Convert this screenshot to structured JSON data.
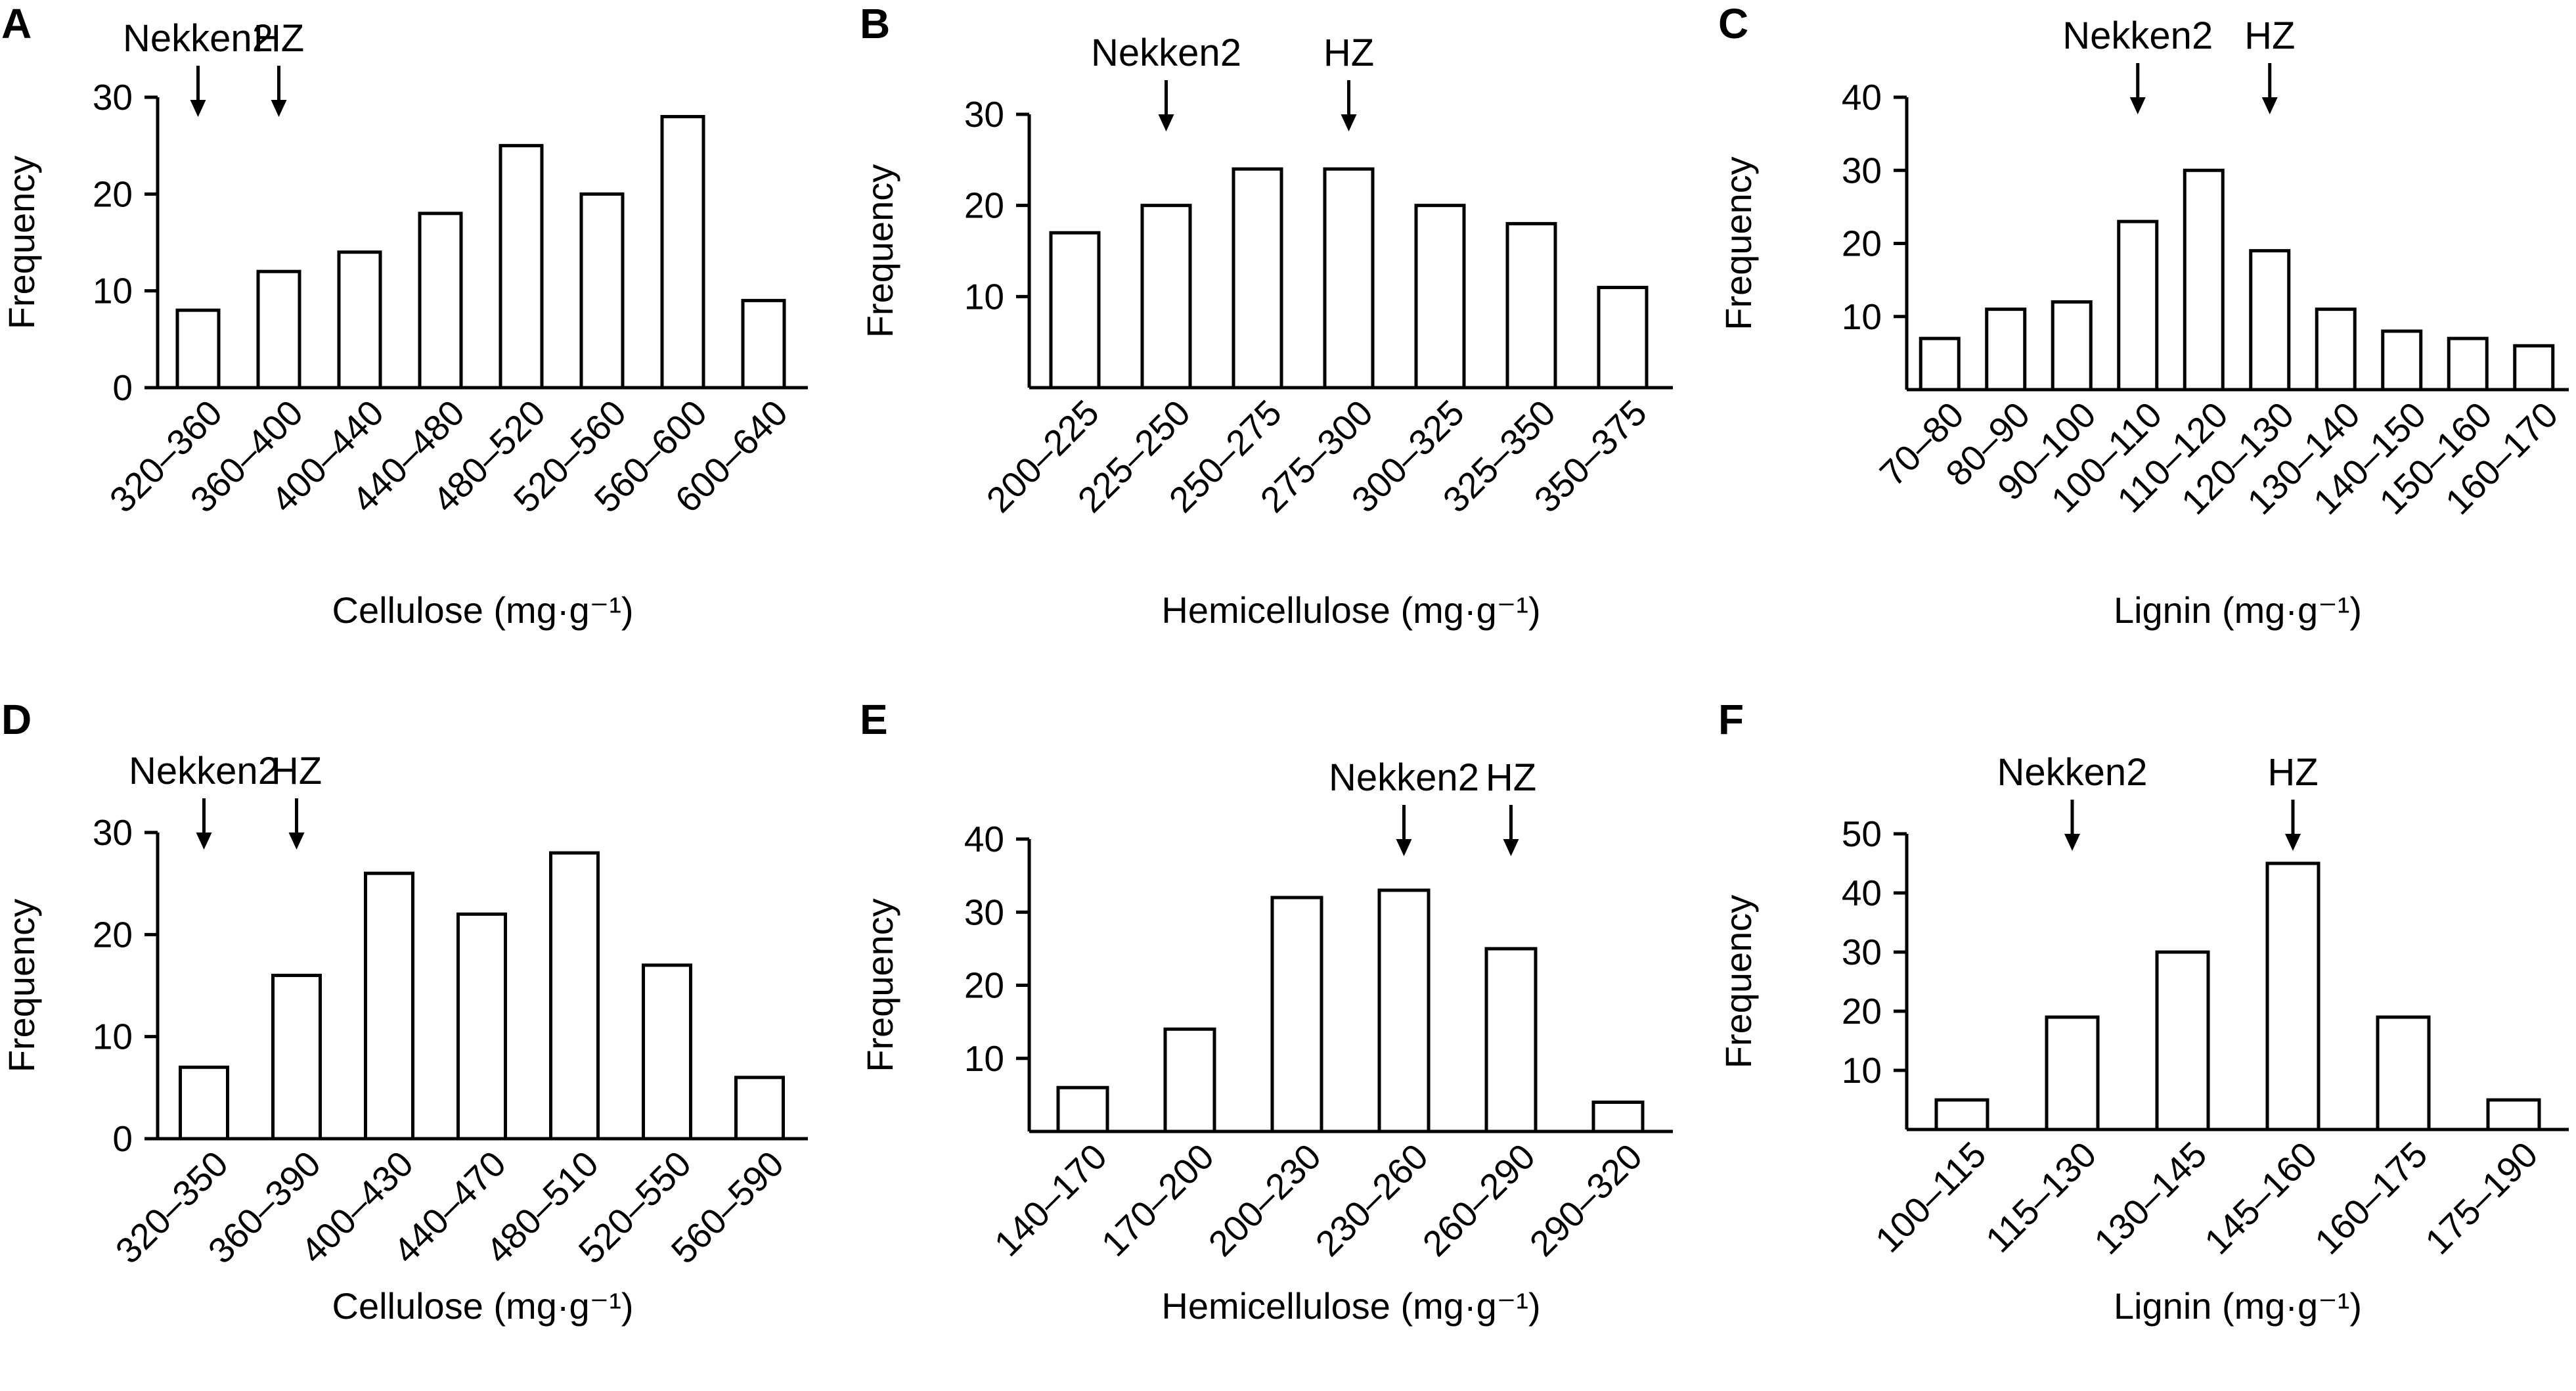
{
  "figure": {
    "markers": {
      "nekken2": "Nekken2",
      "hz": "HZ"
    },
    "frequency_label": "Frequency"
  },
  "chart_data": [
    {
      "panel": "A",
      "type": "bar",
      "xlabel": "Cellulose (mg·g⁻¹)",
      "ylabel": "Frequency",
      "ylim": [
        0,
        30
      ],
      "yticks": [
        "0",
        "10",
        "20",
        "30"
      ],
      "categories": [
        "320–360",
        "360–400",
        "400–440",
        "440–480",
        "480–520",
        "520–560",
        "560–600",
        "600–640"
      ],
      "values": [
        8,
        12,
        14,
        18,
        25,
        20,
        28,
        9
      ],
      "markers": [
        {
          "label": "Nekken2",
          "at_category": "320–360"
        },
        {
          "label": "HZ",
          "at_category": "360–400"
        }
      ]
    },
    {
      "panel": "B",
      "type": "bar",
      "xlabel": "Hemicellulose (mg·g⁻¹)",
      "ylabel": "Frequency",
      "ylim": [
        0,
        30
      ],
      "yticks": [
        "10",
        "20",
        "30"
      ],
      "categories": [
        "200–225",
        "225–250",
        "250–275",
        "275–300",
        "300–325",
        "325–350",
        "350–375"
      ],
      "values": [
        17,
        20,
        24,
        24,
        20,
        18,
        11
      ],
      "markers": [
        {
          "label": "Nekken2",
          "at_category": "225–250"
        },
        {
          "label": "HZ",
          "at_category": "275–300"
        }
      ]
    },
    {
      "panel": "C",
      "type": "bar",
      "xlabel": "Lignin (mg·g⁻¹)",
      "ylabel": "Frequency",
      "ylim": [
        0,
        40
      ],
      "yticks": [
        "10",
        "20",
        "30",
        "40"
      ],
      "categories": [
        "70–80",
        "80–90",
        "90–100",
        "100–110",
        "110–120",
        "120–130",
        "130–140",
        "140–150",
        "150–160",
        "160–170"
      ],
      "values": [
        7,
        11,
        12,
        23,
        30,
        19,
        11,
        8,
        7,
        6
      ],
      "markers": [
        {
          "label": "Nekken2",
          "at_category": "100–110"
        },
        {
          "label": "HZ",
          "at_category": "120–130"
        }
      ]
    },
    {
      "panel": "D",
      "type": "bar",
      "xlabel": "Cellulose (mg·g⁻¹)",
      "ylabel": "Frequency",
      "ylim": [
        0,
        30
      ],
      "yticks": [
        "0",
        "10",
        "20",
        "30"
      ],
      "categories": [
        "320–350",
        "360–390",
        "400–430",
        "440–470",
        "480–510",
        "520–550",
        "560–590"
      ],
      "values": [
        7,
        16,
        26,
        22,
        28,
        17,
        6
      ],
      "markers": [
        {
          "label": "Nekken2",
          "at_category": "320–350"
        },
        {
          "label": "HZ",
          "at_category": "360–390"
        }
      ]
    },
    {
      "panel": "E",
      "type": "bar",
      "xlabel": "Hemicellulose (mg·g⁻¹)",
      "ylabel": "Frequency",
      "ylim": [
        0,
        40
      ],
      "yticks": [
        "10",
        "20",
        "30",
        "40"
      ],
      "categories": [
        "140–170",
        "170–200",
        "200–230",
        "230–260",
        "260–290",
        "290–320"
      ],
      "values": [
        6,
        14,
        32,
        33,
        25,
        4
      ],
      "markers": [
        {
          "label": "Nekken2",
          "at_category": "230–260"
        },
        {
          "label": "HZ",
          "at_category": "260–290"
        }
      ]
    },
    {
      "panel": "F",
      "type": "bar",
      "xlabel": "Lignin (mg·g⁻¹)",
      "ylabel": "Frequency",
      "ylim": [
        0,
        50
      ],
      "yticks": [
        "10",
        "20",
        "30",
        "40",
        "50"
      ],
      "categories": [
        "100–115",
        "115–130",
        "130–145",
        "145–160",
        "160–175",
        "175–190"
      ],
      "values": [
        5,
        19,
        30,
        45,
        19,
        5
      ],
      "markers": [
        {
          "label": "Nekken2",
          "at_category": "115–130"
        },
        {
          "label": "HZ",
          "at_category": "145–160"
        }
      ]
    }
  ]
}
